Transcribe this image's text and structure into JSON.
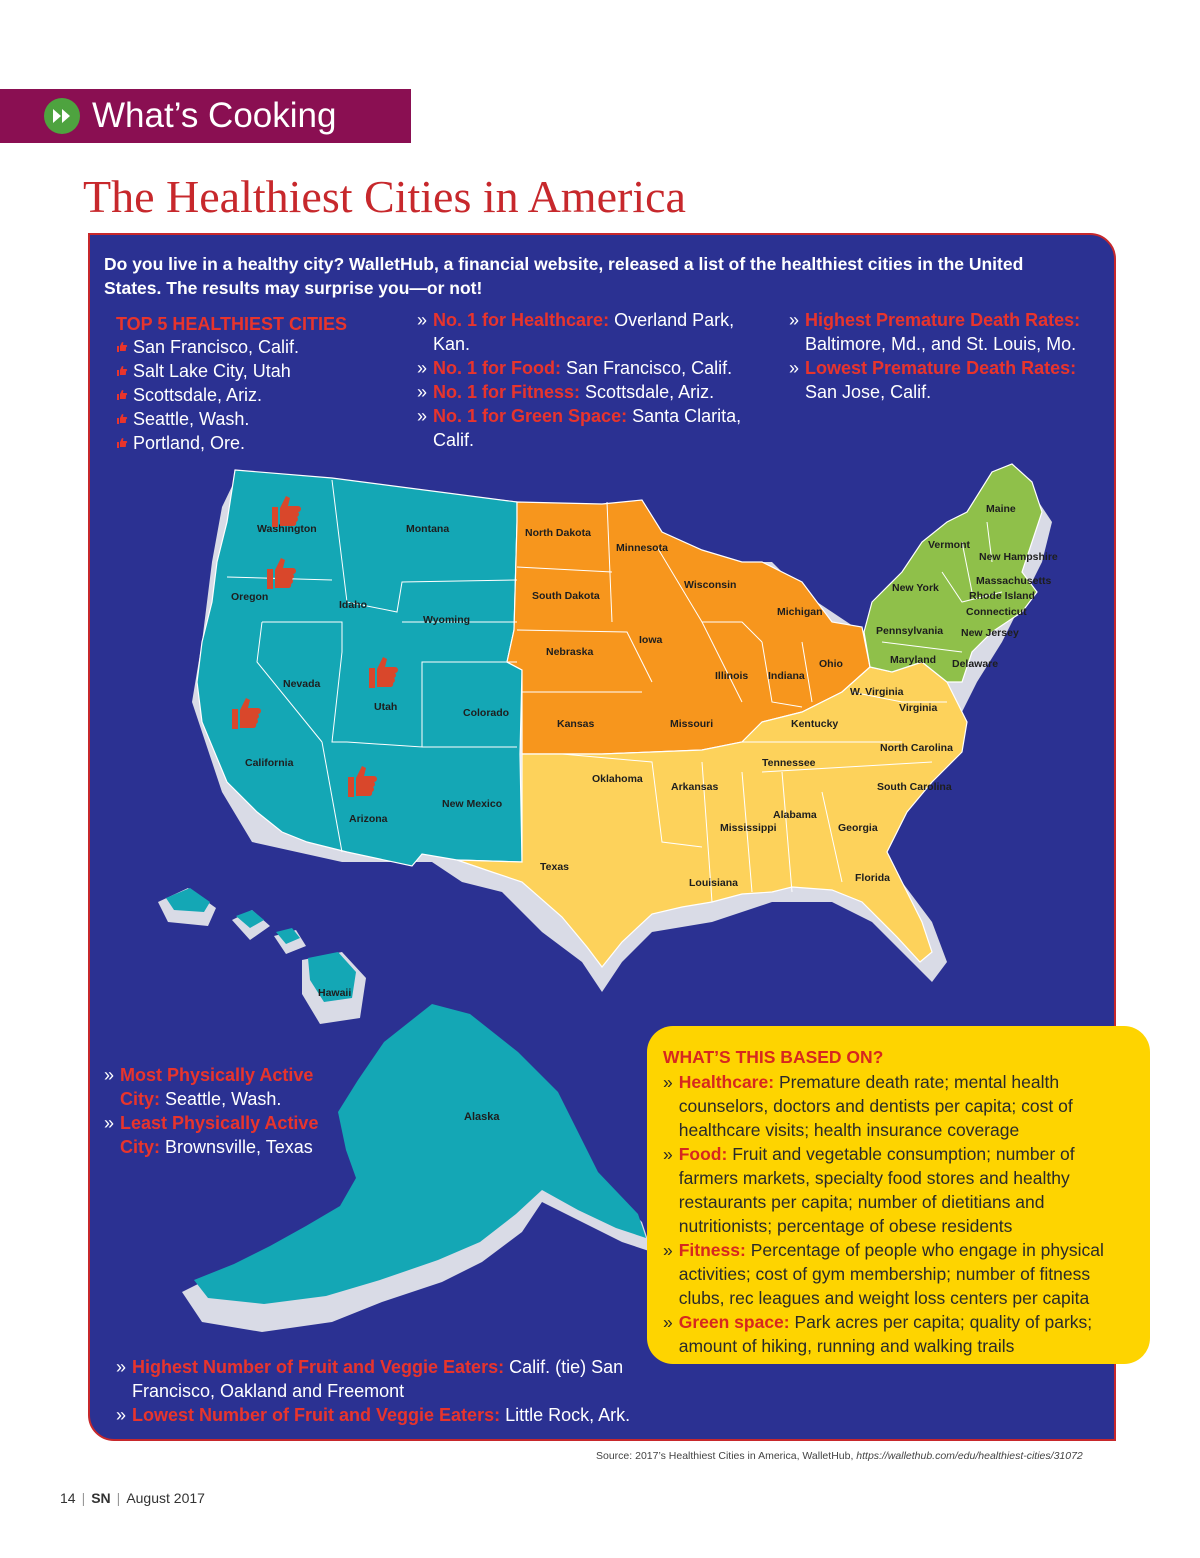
{
  "section": {
    "title": "What’s Cooking",
    "icon": "fast-forward-icon"
  },
  "headline": "The Healthiest Cities in America",
  "intro": "Do you live in a healthy city? WalletHub, a financial website, released a list of the healthiest cities in the United States. The results may surprise you—or not!",
  "top5": {
    "title": "TOP 5 HEALTHIEST CITIES",
    "icon": "thumbs-up-icon",
    "items": [
      "San Francisco, Calif.",
      "Salt Lake City, Utah",
      "Scottsdale, Ariz.",
      "Seattle, Wash.",
      "Portland, Ore."
    ]
  },
  "facts_a": [
    {
      "label": "No. 1 for Healthcare:",
      "value": "Overland Park, Kan."
    },
    {
      "label": "No. 1 for Food:",
      "value": "San Francisco, Calif."
    },
    {
      "label": "No. 1 for Fitness:",
      "value": "Scottsdale, Ariz."
    },
    {
      "label": "No. 1 for Green Space:",
      "value": "Santa Clarita, Calif."
    }
  ],
  "facts_b": [
    {
      "label": "Highest Premature Death Rates:",
      "value": "Baltimore, Md., and St. Louis, Mo."
    },
    {
      "label": "Lowest Premature Death Rates:",
      "value": "San Jose, Calif."
    }
  ],
  "facts_c": [
    {
      "label": "Most Physically Active City:",
      "value": "Seattle, Wash."
    },
    {
      "label": "Least Physically Active City:",
      "value": "Brownsville, Texas"
    }
  ],
  "facts_d": [
    {
      "label": "Highest Number of Fruit and Veggie Eaters:",
      "value": "Calif. (tie) San Francisco, Oakland and Freemont"
    },
    {
      "label": "Lowest Number of Fruit and Veggie Eaters:",
      "value": "Little Rock, Ark."
    }
  ],
  "based_on": {
    "title": "WHAT’S THIS BASED ON?",
    "items": [
      {
        "label": "Healthcare:",
        "value": "Premature death rate; mental health counselors, doctors and dentists per capita; cost of healthcare visits; health insurance coverage"
      },
      {
        "label": "Food:",
        "value": "Fruit and vegetable consumption; number of farmers markets, specialty food stores and healthy restaurants per capita; number of dietitians and nutritionists; percentage of obese residents"
      },
      {
        "label": "Fitness:",
        "value": "Percentage of people who engage in physical activities; cost of gym membership; number of fitness clubs, rec leagues and weight loss centers per capita"
      },
      {
        "label": "Green space:",
        "value": "Park acres per capita; quality of parks; amount of hiking, running and walking trails"
      }
    ]
  },
  "map": {
    "colors": {
      "west": "#14a7b5",
      "midwest": "#f7961d",
      "south": "#fdd25b",
      "northeast": "#8fc04a",
      "extrude": "#d9dbe6",
      "thumb": "#d9472b"
    },
    "states": {
      "washington": "Washington",
      "oregon": "Oregon",
      "california": "California",
      "nevada": "Nevada",
      "idaho": "Idaho",
      "montana": "Montana",
      "wyoming": "Wyoming",
      "utah": "Utah",
      "colorado": "Colorado",
      "arizona": "Arizona",
      "new_mexico": "New Mexico",
      "north_dakota": "North Dakota",
      "south_dakota": "South Dakota",
      "nebraska": "Nebraska",
      "kansas": "Kansas",
      "minnesota": "Minnesota",
      "iowa": "Iowa",
      "missouri": "Missouri",
      "wisconsin": "Wisconsin",
      "illinois": "Illinois",
      "michigan": "Michigan",
      "indiana": "Indiana",
      "ohio": "Ohio",
      "oklahoma": "Oklahoma",
      "texas": "Texas",
      "arkansas": "Arkansas",
      "louisiana": "Louisiana",
      "mississippi": "Mississippi",
      "alabama": "Alabama",
      "tennessee": "Tennessee",
      "kentucky": "Kentucky",
      "georgia": "Georgia",
      "florida": "Florida",
      "south_carolina": "South Carolina",
      "north_carolina": "North Carolina",
      "virginia": "Virginia",
      "w_virginia": "W. Virginia",
      "maryland": "Maryland",
      "delaware": "Delaware",
      "new_jersey": "New Jersey",
      "pennsylvania": "Pennsylvania",
      "new_york": "New York",
      "connecticut": "Connecticut",
      "rhode_island": "Rhode Island",
      "massachusetts": "Massachusetts",
      "vermont": "Vermont",
      "new_hampshire": "New Hampshire",
      "maine": "Maine",
      "hawaii": "Hawaii",
      "alaska": "Alaska"
    }
  },
  "source": {
    "text": "Source: 2017’s Healthiest Cities in America, WalletHub,",
    "url": "https://wallethub.com/edu/healthiest-cities/31072"
  },
  "folio": {
    "page": "14",
    "magazine": "SN",
    "date": "August 2017"
  }
}
